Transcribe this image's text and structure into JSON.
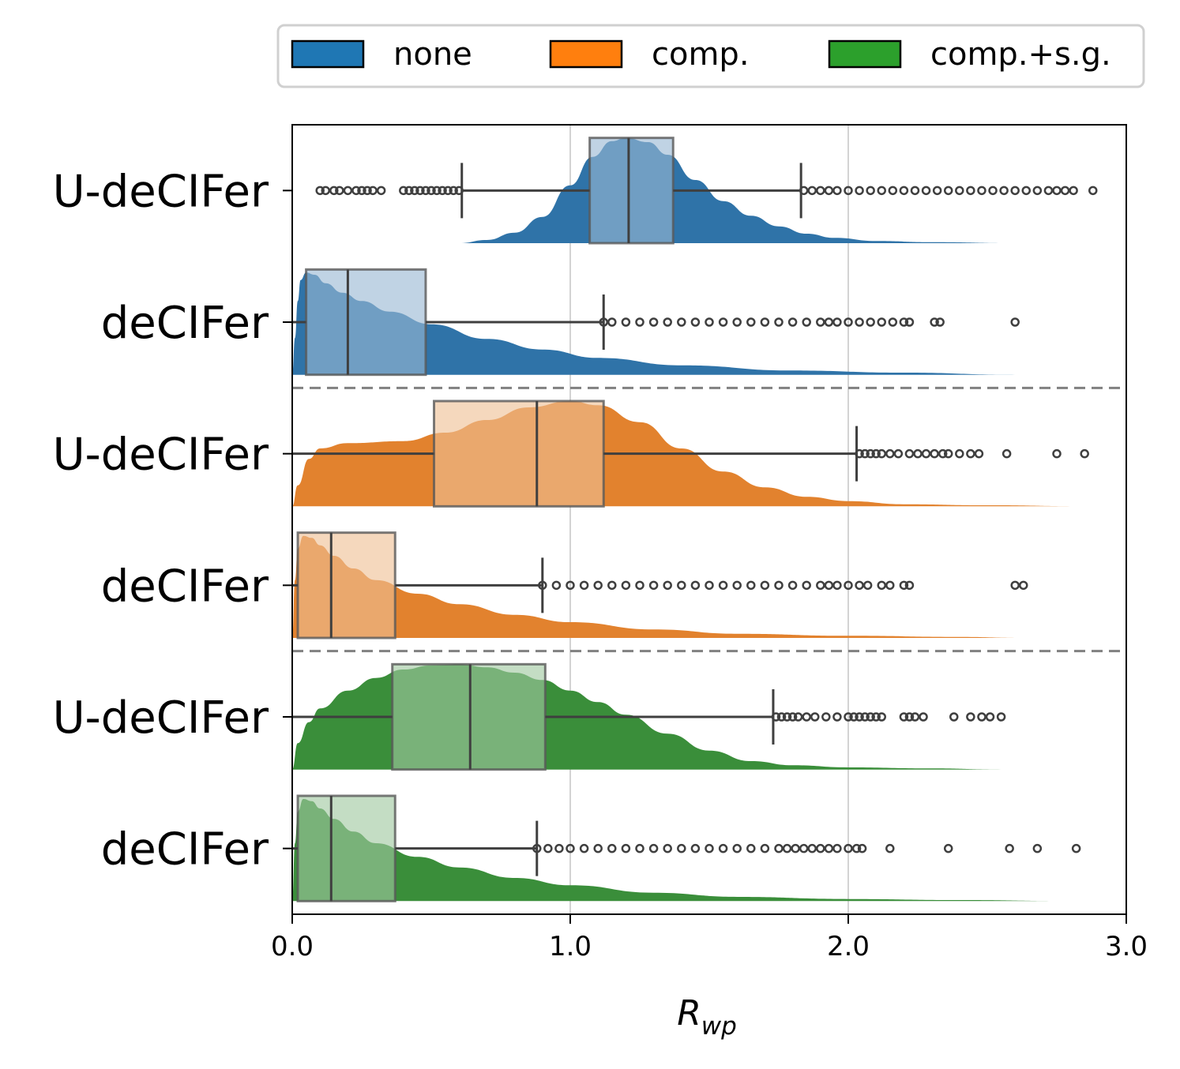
{
  "chart_data": {
    "type": "raincloud",
    "xlabel": "R",
    "xlabel_sub": "wp",
    "ylabel": "",
    "xlim": [
      0.0,
      3.0
    ],
    "xticks": [
      "0.0",
      "1.0",
      "2.0",
      "3.0"
    ],
    "grid": "vertical at 1.0 and 2.0",
    "legend_position": "top",
    "legend": [
      {
        "label": "none",
        "color": "#1f77b4"
      },
      {
        "label": "comp.",
        "color": "#ff7f0e"
      },
      {
        "label": "comp.+s.g.",
        "color": "#2ca02c"
      }
    ],
    "series": [
      {
        "name": "U-deCIFer",
        "group": "none",
        "color": "#2f73a8",
        "box_fill": "#9ab8d3",
        "whisker_low": 0.61,
        "q1": 1.07,
        "median": 1.21,
        "q3": 1.37,
        "whisker_high": 1.83,
        "outliers": [
          0.1,
          0.12,
          0.15,
          0.17,
          0.2,
          0.23,
          0.25,
          0.27,
          0.29,
          0.32,
          0.4,
          0.42,
          0.44,
          0.46,
          0.48,
          0.5,
          0.52,
          0.54,
          0.56,
          0.58,
          0.6,
          1.84,
          1.87,
          1.9,
          1.93,
          1.96,
          2.0,
          2.04,
          2.08,
          2.12,
          2.16,
          2.2,
          2.24,
          2.28,
          2.32,
          2.36,
          2.4,
          2.44,
          2.48,
          2.52,
          2.56,
          2.6,
          2.64,
          2.68,
          2.72,
          2.75,
          2.78,
          2.81,
          2.88
        ],
        "density": {
          "x": [
            0.1,
            0.6,
            0.7,
            0.8,
            0.9,
            1.0,
            1.08,
            1.15,
            1.2,
            1.28,
            1.35,
            1.45,
            1.55,
            1.65,
            1.75,
            1.85,
            1.95,
            2.1,
            2.3,
            2.6,
            3.0
          ],
          "y": [
            0.0,
            0.0,
            0.03,
            0.1,
            0.25,
            0.55,
            0.82,
            0.97,
            1.0,
            0.96,
            0.84,
            0.6,
            0.4,
            0.26,
            0.16,
            0.09,
            0.05,
            0.02,
            0.01,
            0.0,
            0.0
          ]
        }
      },
      {
        "name": "deCIFer",
        "group": "none",
        "color": "#2f73a8",
        "box_fill": "#9ab8d3",
        "whisker_low": 0.0,
        "q1": 0.05,
        "median": 0.2,
        "q3": 0.48,
        "whisker_high": 1.12,
        "outliers": [
          1.12,
          1.15,
          1.2,
          1.25,
          1.3,
          1.35,
          1.4,
          1.45,
          1.5,
          1.55,
          1.6,
          1.65,
          1.7,
          1.75,
          1.8,
          1.85,
          1.9,
          1.93,
          1.96,
          2.0,
          2.04,
          2.08,
          2.12,
          2.16,
          2.2,
          2.22,
          2.31,
          2.33,
          2.6
        ],
        "density": {
          "x": [
            0.0,
            0.01,
            0.02,
            0.03,
            0.05,
            0.08,
            0.12,
            0.18,
            0.25,
            0.35,
            0.5,
            0.7,
            0.9,
            1.1,
            1.4,
            1.8,
            2.2,
            2.6
          ],
          "y": [
            0.0,
            0.35,
            0.7,
            0.9,
            0.97,
            0.95,
            0.87,
            0.78,
            0.7,
            0.6,
            0.48,
            0.34,
            0.24,
            0.16,
            0.09,
            0.04,
            0.02,
            0.0
          ]
        }
      },
      {
        "name": "U-deCIFer",
        "group": "comp.",
        "color": "#e2822e",
        "box_fill": "#efc095",
        "whisker_low": 0.0,
        "q1": 0.51,
        "median": 0.88,
        "q3": 1.12,
        "whisker_high": 2.03,
        "outliers": [
          2.04,
          2.06,
          2.08,
          2.1,
          2.12,
          2.15,
          2.18,
          2.22,
          2.25,
          2.28,
          2.31,
          2.34,
          2.36,
          2.4,
          2.44,
          2.47,
          2.57,
          2.75,
          2.85
        ],
        "density": {
          "x": [
            0.0,
            0.02,
            0.06,
            0.1,
            0.2,
            0.4,
            0.55,
            0.7,
            0.85,
            1.0,
            1.1,
            1.25,
            1.4,
            1.55,
            1.7,
            1.85,
            2.0,
            2.2,
            2.5,
            2.85
          ],
          "y": [
            0.0,
            0.2,
            0.45,
            0.55,
            0.6,
            0.62,
            0.7,
            0.82,
            0.94,
            1.0,
            0.96,
            0.8,
            0.55,
            0.33,
            0.18,
            0.09,
            0.05,
            0.02,
            0.01,
            0.0
          ]
        }
      },
      {
        "name": "deCIFer",
        "group": "comp.",
        "color": "#e2822e",
        "box_fill": "#efc095",
        "whisker_low": 0.0,
        "q1": 0.02,
        "median": 0.14,
        "q3": 0.37,
        "whisker_high": 0.9,
        "outliers": [
          0.9,
          0.95,
          1.0,
          1.05,
          1.1,
          1.15,
          1.2,
          1.25,
          1.3,
          1.35,
          1.4,
          1.45,
          1.5,
          1.55,
          1.6,
          1.65,
          1.7,
          1.75,
          1.8,
          1.85,
          1.9,
          1.93,
          1.96,
          2.0,
          2.04,
          2.07,
          2.12,
          2.15,
          2.2,
          2.22,
          2.6,
          2.63
        ],
        "density": {
          "x": [
            0.0,
            0.01,
            0.02,
            0.04,
            0.07,
            0.1,
            0.15,
            0.22,
            0.3,
            0.45,
            0.6,
            0.8,
            1.0,
            1.3,
            1.6,
            2.0,
            2.4,
            2.63
          ],
          "y": [
            0.0,
            0.55,
            0.85,
            0.97,
            0.95,
            0.88,
            0.78,
            0.66,
            0.55,
            0.42,
            0.32,
            0.22,
            0.15,
            0.08,
            0.04,
            0.02,
            0.01,
            0.0
          ]
        }
      },
      {
        "name": "U-deCIFer",
        "group": "comp.+s.g.",
        "color": "#3a8e3a",
        "box_fill": "#9fc89f",
        "whisker_low": 0.0,
        "q1": 0.36,
        "median": 0.64,
        "q3": 0.91,
        "whisker_high": 1.73,
        "outliers": [
          1.74,
          1.76,
          1.78,
          1.8,
          1.82,
          1.85,
          1.88,
          1.92,
          1.96,
          2.0,
          2.02,
          2.04,
          2.06,
          2.08,
          2.1,
          2.12,
          2.2,
          2.22,
          2.24,
          2.27,
          2.38,
          2.44,
          2.48,
          2.51,
          2.55
        ],
        "density": {
          "x": [
            0.0,
            0.02,
            0.06,
            0.1,
            0.2,
            0.3,
            0.4,
            0.5,
            0.6,
            0.7,
            0.8,
            0.9,
            1.0,
            1.1,
            1.2,
            1.35,
            1.5,
            1.65,
            1.8,
            2.0,
            2.3,
            2.55
          ],
          "y": [
            0.0,
            0.25,
            0.45,
            0.58,
            0.75,
            0.87,
            0.95,
            0.99,
            1.0,
            0.97,
            0.92,
            0.85,
            0.75,
            0.64,
            0.52,
            0.34,
            0.18,
            0.08,
            0.04,
            0.02,
            0.01,
            0.0
          ]
        }
      },
      {
        "name": "deCIFer",
        "group": "comp.+s.g.",
        "color": "#3a8e3a",
        "box_fill": "#9fc89f",
        "whisker_low": 0.0,
        "q1": 0.02,
        "median": 0.14,
        "q3": 0.37,
        "whisker_high": 0.88,
        "outliers": [
          0.88,
          0.92,
          0.96,
          1.0,
          1.05,
          1.1,
          1.15,
          1.2,
          1.25,
          1.3,
          1.35,
          1.4,
          1.45,
          1.5,
          1.55,
          1.6,
          1.65,
          1.7,
          1.75,
          1.78,
          1.81,
          1.84,
          1.87,
          1.9,
          1.93,
          1.96,
          2.0,
          2.03,
          2.05,
          2.15,
          2.36,
          2.58,
          2.68,
          2.82
        ],
        "density": {
          "x": [
            0.0,
            0.01,
            0.02,
            0.04,
            0.07,
            0.1,
            0.15,
            0.22,
            0.3,
            0.45,
            0.6,
            0.8,
            1.0,
            1.3,
            1.6,
            2.0,
            2.4,
            2.82
          ],
          "y": [
            0.0,
            0.55,
            0.85,
            0.97,
            0.95,
            0.88,
            0.78,
            0.66,
            0.55,
            0.42,
            0.32,
            0.22,
            0.15,
            0.08,
            0.04,
            0.02,
            0.01,
            0.0
          ]
        }
      }
    ]
  }
}
